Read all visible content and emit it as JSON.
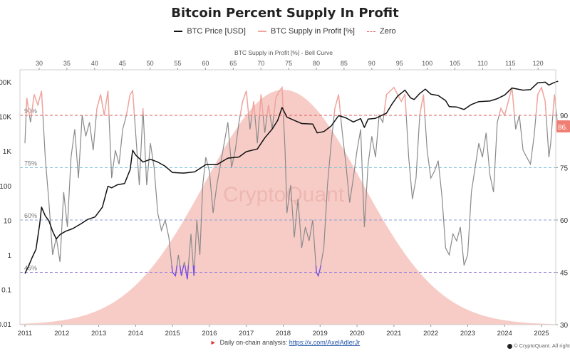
{
  "title": "Bitcoin Percent Supply In Profit",
  "legend": [
    {
      "label": "BTC Price [USD]",
      "color": "#111111",
      "style": "solid"
    },
    {
      "label": "BTC Supply in Profit [%]",
      "color": "#f4a49c",
      "style": "solid"
    },
    {
      "label": "Zero",
      "color": "#e05a5a",
      "style": "dashed"
    }
  ],
  "chart_data": {
    "type": "line",
    "top_axis_title": "BTC Supply in Profit [%] - Bell Curve",
    "top_ticks": [
      "30",
      "35",
      "40",
      "45",
      "50",
      "55",
      "60",
      "65",
      "70",
      "75",
      "80",
      "85",
      "90",
      "95",
      "100",
      "105",
      "110",
      "115",
      "120"
    ],
    "x_ticks": [
      "2011",
      "2012",
      "2013",
      "2014",
      "2015",
      "2016",
      "2017",
      "2018",
      "2019",
      "2020",
      "2021",
      "2022",
      "2023",
      "2024",
      "2025"
    ],
    "left_ticks": [
      "100K",
      "10K",
      "1K",
      "100",
      "10",
      "1",
      "0.1",
      "0.01"
    ],
    "right_ticks": [
      "90",
      "75",
      "60",
      "45",
      "30"
    ],
    "y_left_scale": "log",
    "y_left_range": [
      0.01,
      100000
    ],
    "y_right_range": [
      30,
      95
    ],
    "reference_lines": [
      {
        "label": "90%",
        "value": 90,
        "color": "#e05a5a"
      },
      {
        "label": "75%",
        "value": 75,
        "color": "#7fc4dc"
      },
      {
        "label": "60%",
        "value": 60,
        "color": "#8a9fd8"
      },
      {
        "label": "45%",
        "value": 45,
        "color": "#9a80dc"
      }
    ],
    "current_value_label": "86.",
    "watermark": "CryptoQuant",
    "series": [
      {
        "name": "BTC Price [USD]",
        "color": "#111111",
        "points": [
          [
            2011.0,
            0.3
          ],
          [
            2011.1,
            0.5
          ],
          [
            2011.2,
            0.9
          ],
          [
            2011.3,
            1.5
          ],
          [
            2011.4,
            8
          ],
          [
            2011.45,
            25
          ],
          [
            2011.55,
            14
          ],
          [
            2011.65,
            10
          ],
          [
            2011.75,
            5
          ],
          [
            2011.85,
            3
          ],
          [
            2011.95,
            4
          ],
          [
            2012.1,
            5
          ],
          [
            2012.3,
            6
          ],
          [
            2012.5,
            8
          ],
          [
            2012.7,
            11
          ],
          [
            2012.9,
            13
          ],
          [
            2013.1,
            25
          ],
          [
            2013.25,
            100
          ],
          [
            2013.35,
            90
          ],
          [
            2013.5,
            110
          ],
          [
            2013.7,
            120
          ],
          [
            2013.85,
            300
          ],
          [
            2013.92,
            1100
          ],
          [
            2014.0,
            800
          ],
          [
            2014.2,
            500
          ],
          [
            2014.4,
            600
          ],
          [
            2014.6,
            500
          ],
          [
            2014.8,
            380
          ],
          [
            2015.0,
            250
          ],
          [
            2015.3,
            240
          ],
          [
            2015.6,
            260
          ],
          [
            2015.9,
            420
          ],
          [
            2016.2,
            420
          ],
          [
            2016.5,
            650
          ],
          [
            2016.8,
            700
          ],
          [
            2017.0,
            1000
          ],
          [
            2017.3,
            1200
          ],
          [
            2017.5,
            2500
          ],
          [
            2017.7,
            4500
          ],
          [
            2017.85,
            8000
          ],
          [
            2017.97,
            19000
          ],
          [
            2018.1,
            10000
          ],
          [
            2018.3,
            8000
          ],
          [
            2018.5,
            6500
          ],
          [
            2018.8,
            6300
          ],
          [
            2018.92,
            3500
          ],
          [
            2019.1,
            3800
          ],
          [
            2019.3,
            5500
          ],
          [
            2019.5,
            11000
          ],
          [
            2019.7,
            9500
          ],
          [
            2019.9,
            7200
          ],
          [
            2020.1,
            9000
          ],
          [
            2020.2,
            5000
          ],
          [
            2020.3,
            8700
          ],
          [
            2020.5,
            9200
          ],
          [
            2020.8,
            13000
          ],
          [
            2020.95,
            24000
          ],
          [
            2021.1,
            40000
          ],
          [
            2021.3,
            60000
          ],
          [
            2021.45,
            36000
          ],
          [
            2021.55,
            32000
          ],
          [
            2021.7,
            48000
          ],
          [
            2021.85,
            64000
          ],
          [
            2022.0,
            46000
          ],
          [
            2022.2,
            42000
          ],
          [
            2022.4,
            30000
          ],
          [
            2022.5,
            20000
          ],
          [
            2022.7,
            19500
          ],
          [
            2022.9,
            16500
          ],
          [
            2023.1,
            23000
          ],
          [
            2023.3,
            28000
          ],
          [
            2023.6,
            29000
          ],
          [
            2023.8,
            34000
          ],
          [
            2024.0,
            43000
          ],
          [
            2024.2,
            69000
          ],
          [
            2024.5,
            60000
          ],
          [
            2024.7,
            62000
          ],
          [
            2024.9,
            98000
          ],
          [
            2025.1,
            102000
          ],
          [
            2025.2,
            84000
          ],
          [
            2025.3,
            95000
          ],
          [
            2025.4,
            105000
          ],
          [
            2025.45,
            108000
          ]
        ]
      },
      {
        "name": "BTC Supply in Profit [%]",
        "color": "#f4a49c",
        "points": [
          [
            2011.0,
            82
          ],
          [
            2011.05,
            95
          ],
          [
            2011.15,
            88
          ],
          [
            2011.25,
            96
          ],
          [
            2011.35,
            93
          ],
          [
            2011.45,
            97
          ],
          [
            2011.55,
            78
          ],
          [
            2011.65,
            65
          ],
          [
            2011.75,
            50
          ],
          [
            2011.85,
            55
          ],
          [
            2011.95,
            48
          ],
          [
            2012.05,
            68
          ],
          [
            2012.15,
            58
          ],
          [
            2012.25,
            78
          ],
          [
            2012.35,
            86
          ],
          [
            2012.45,
            72
          ],
          [
            2012.55,
            90
          ],
          [
            2012.65,
            84
          ],
          [
            2012.75,
            88
          ],
          [
            2012.85,
            80
          ],
          [
            2012.95,
            92
          ],
          [
            2013.05,
            96
          ],
          [
            2013.15,
            90
          ],
          [
            2013.25,
            97
          ],
          [
            2013.35,
            72
          ],
          [
            2013.45,
            80
          ],
          [
            2013.55,
            76
          ],
          [
            2013.65,
            86
          ],
          [
            2013.75,
            90
          ],
          [
            2013.85,
            96
          ],
          [
            2013.92,
            97
          ],
          [
            2014.0,
            85
          ],
          [
            2014.1,
            70
          ],
          [
            2014.2,
            92
          ],
          [
            2014.3,
            70
          ],
          [
            2014.4,
            82
          ],
          [
            2014.5,
            75
          ],
          [
            2014.6,
            62
          ],
          [
            2014.7,
            57
          ],
          [
            2014.8,
            60
          ],
          [
            2014.9,
            55
          ],
          [
            2015.0,
            45
          ],
          [
            2015.08,
            44
          ],
          [
            2015.16,
            50
          ],
          [
            2015.24,
            44
          ],
          [
            2015.32,
            48
          ],
          [
            2015.4,
            43
          ],
          [
            2015.5,
            56
          ],
          [
            2015.58,
            44
          ],
          [
            2015.66,
            60
          ],
          [
            2015.74,
            50
          ],
          [
            2015.82,
            70
          ],
          [
            2015.9,
            78
          ],
          [
            2016.0,
            74
          ],
          [
            2016.1,
            62
          ],
          [
            2016.2,
            70
          ],
          [
            2016.3,
            76
          ],
          [
            2016.4,
            82
          ],
          [
            2016.5,
            88
          ],
          [
            2016.6,
            75
          ],
          [
            2016.7,
            80
          ],
          [
            2016.8,
            88
          ],
          [
            2016.9,
            94
          ],
          [
            2017.0,
            97
          ],
          [
            2017.1,
            86
          ],
          [
            2017.2,
            94
          ],
          [
            2017.3,
            82
          ],
          [
            2017.4,
            96
          ],
          [
            2017.5,
            85
          ],
          [
            2017.6,
            93
          ],
          [
            2017.7,
            86
          ],
          [
            2017.8,
            95
          ],
          [
            2017.9,
            97
          ],
          [
            2017.97,
            98
          ],
          [
            2018.05,
            80
          ],
          [
            2018.1,
            62
          ],
          [
            2018.2,
            70
          ],
          [
            2018.3,
            55
          ],
          [
            2018.4,
            66
          ],
          [
            2018.5,
            52
          ],
          [
            2018.6,
            58
          ],
          [
            2018.7,
            54
          ],
          [
            2018.8,
            60
          ],
          [
            2018.9,
            45
          ],
          [
            2018.95,
            44
          ],
          [
            2019.0,
            46
          ],
          [
            2019.1,
            52
          ],
          [
            2019.2,
            70
          ],
          [
            2019.3,
            82
          ],
          [
            2019.4,
            92
          ],
          [
            2019.5,
            96
          ],
          [
            2019.6,
            85
          ],
          [
            2019.7,
            76
          ],
          [
            2019.8,
            65
          ],
          [
            2019.9,
            72
          ],
          [
            2020.0,
            80
          ],
          [
            2020.1,
            86
          ],
          [
            2020.2,
            58
          ],
          [
            2020.3,
            76
          ],
          [
            2020.4,
            84
          ],
          [
            2020.5,
            78
          ],
          [
            2020.6,
            90
          ],
          [
            2020.7,
            88
          ],
          [
            2020.8,
            96
          ],
          [
            2020.9,
            97
          ],
          [
            2021.0,
            98
          ],
          [
            2021.1,
            96
          ],
          [
            2021.2,
            94
          ],
          [
            2021.3,
            96
          ],
          [
            2021.4,
            78
          ],
          [
            2021.5,
            66
          ],
          [
            2021.6,
            72
          ],
          [
            2021.7,
            90
          ],
          [
            2021.8,
            96
          ],
          [
            2021.9,
            80
          ],
          [
            2022.0,
            72
          ],
          [
            2022.1,
            74
          ],
          [
            2022.2,
            77
          ],
          [
            2022.3,
            67
          ],
          [
            2022.4,
            52
          ],
          [
            2022.5,
            50
          ],
          [
            2022.6,
            56
          ],
          [
            2022.7,
            54
          ],
          [
            2022.8,
            58
          ],
          [
            2022.9,
            47
          ],
          [
            2023.0,
            50
          ],
          [
            2023.1,
            68
          ],
          [
            2023.2,
            75
          ],
          [
            2023.3,
            82
          ],
          [
            2023.4,
            78
          ],
          [
            2023.5,
            85
          ],
          [
            2023.6,
            73
          ],
          [
            2023.7,
            68
          ],
          [
            2023.8,
            88
          ],
          [
            2023.9,
            92
          ],
          [
            2024.0,
            90
          ],
          [
            2024.1,
            94
          ],
          [
            2024.2,
            98
          ],
          [
            2024.3,
            86
          ],
          [
            2024.4,
            90
          ],
          [
            2024.5,
            80
          ],
          [
            2024.6,
            78
          ],
          [
            2024.7,
            76
          ],
          [
            2024.8,
            84
          ],
          [
            2024.9,
            96
          ],
          [
            2025.0,
            98
          ],
          [
            2025.1,
            94
          ],
          [
            2025.2,
            78
          ],
          [
            2025.25,
            82
          ],
          [
            2025.35,
            96
          ],
          [
            2025.45,
            86
          ]
        ]
      }
    ]
  },
  "footer": {
    "text": "Daily on-chain analysis: ",
    "link": "https://x.com/AxelAdlerJr",
    "copyright": "© CryptoQuant. All rights reserved"
  }
}
